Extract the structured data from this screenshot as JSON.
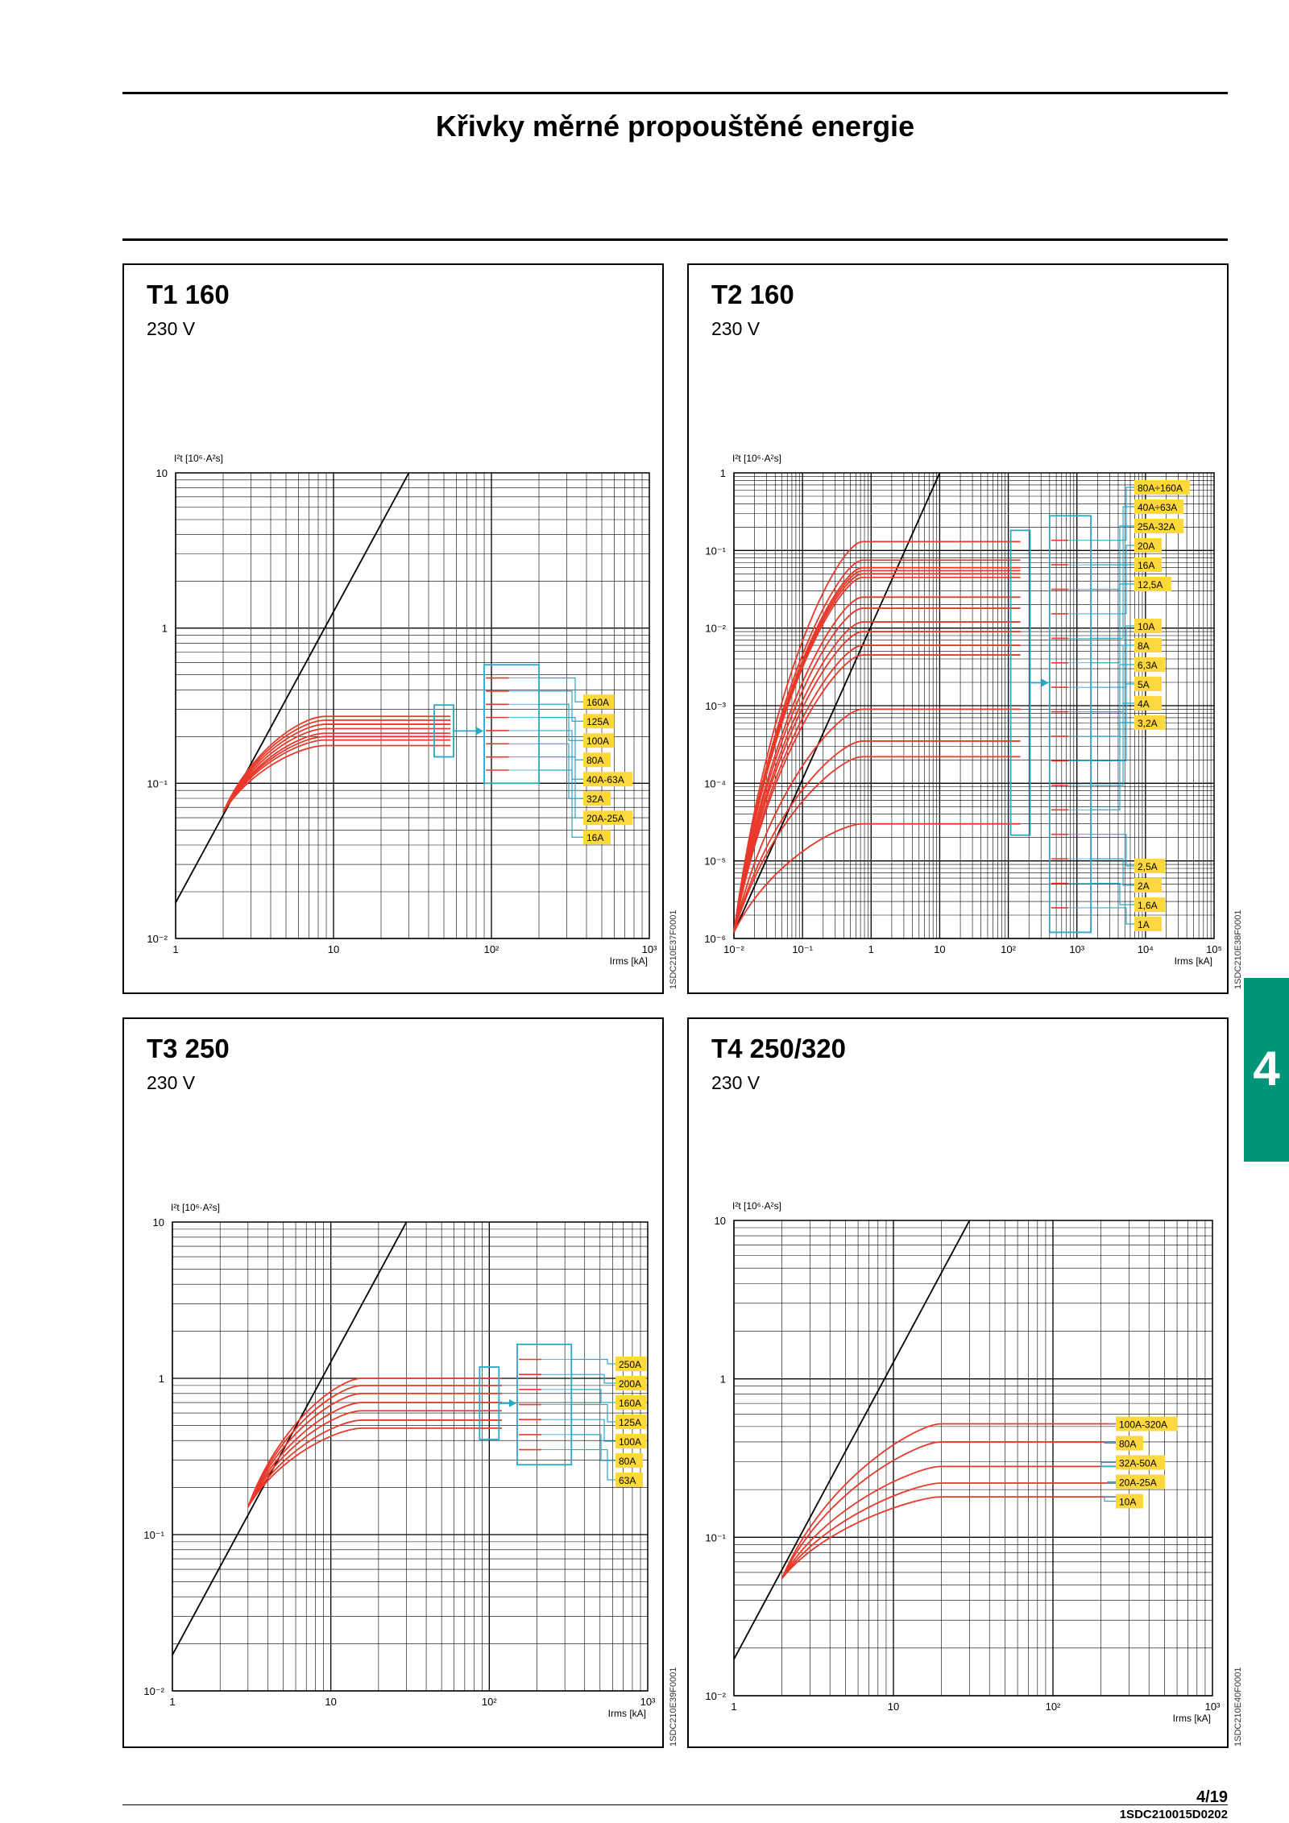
{
  "header": {
    "title": "Křivky měrné propouštěné energie"
  },
  "tab": {
    "number": "4"
  },
  "footer": {
    "page": "4/19",
    "doc_code": "1SDC210015D0202"
  },
  "colors": {
    "curve": "#e8392b",
    "bracket": "#2aa6c9",
    "label_bg": "#ffd83d",
    "tab": "#009579",
    "grid": "#000000"
  },
  "chart_data": [
    {
      "id": "t1",
      "type": "line",
      "title": "T1 160",
      "subtitle": "230 V",
      "ylabel": "I²t [10⁶·A²s]",
      "xlabel": "Irms [kA]",
      "x_scale": "log",
      "y_scale": "log",
      "xlim": [
        1,
        1000
      ],
      "ylim": [
        0.01,
        10
      ],
      "x_ticks": [
        "1",
        "10",
        "10²",
        "10³"
      ],
      "y_ticks": [
        "10",
        "1",
        "10⁻¹",
        "10⁻²"
      ],
      "code": "1SDC210E37F0001",
      "bracket_x_kA": 50,
      "box_x_kA": [
        90,
        200
      ],
      "box_y": [
        0.1,
        0.58
      ],
      "limit_line": [
        [
          1,
          0.017
        ],
        [
          30,
          10
        ]
      ],
      "series": [
        {
          "name": "160A",
          "plateau": 0.27,
          "start": [
            2,
            0.065
          ],
          "end_x": 55
        },
        {
          "name": "125A",
          "plateau": 0.255,
          "start": [
            2,
            0.065
          ],
          "end_x": 55
        },
        {
          "name": "100A",
          "plateau": 0.24,
          "start": [
            2,
            0.065
          ],
          "end_x": 55
        },
        {
          "name": "80A",
          "plateau": 0.225,
          "start": [
            2,
            0.065
          ],
          "end_x": 55
        },
        {
          "name": "40A-63A",
          "plateau": 0.21,
          "start": [
            2,
            0.065
          ],
          "end_x": 55
        },
        {
          "name": "32A",
          "plateau": 0.2,
          "start": [
            2,
            0.065
          ],
          "end_x": 55
        },
        {
          "name": "20A-25A",
          "plateau": 0.19,
          "start": [
            2,
            0.065
          ],
          "end_x": 55
        },
        {
          "name": "16A",
          "plateau": 0.175,
          "start": [
            2,
            0.065
          ],
          "end_x": 55
        }
      ]
    },
    {
      "id": "t2",
      "type": "line",
      "title": "T2 160",
      "subtitle": "230 V",
      "ylabel": "I²t [10⁶·A²s]",
      "xlabel": "Irms [kA]",
      "x_scale": "log",
      "y_scale": "log",
      "xlim": [
        0.01,
        100000
      ],
      "ylim": [
        1e-06,
        1
      ],
      "x_ticks": [
        "10⁻²",
        "10⁻¹",
        "1",
        "10",
        "10²",
        "10³",
        "10⁴",
        "10⁵"
      ],
      "y_ticks": [
        "1",
        "10⁻¹",
        "10⁻²",
        "10⁻³",
        "10⁻⁴",
        "10⁻⁵",
        "10⁻⁶"
      ],
      "code": "1SDC210E38F0001",
      "bracket_x_kA": 150,
      "box_x_kA": [
        400,
        1600
      ],
      "box_y": [
        1.2e-06,
        0.28
      ],
      "limit_line": [
        [
          0.01,
          1.2e-06
        ],
        [
          10,
          1
        ]
      ],
      "series": [
        {
          "name": "80A÷160A",
          "plateau": 0.13,
          "start": [
            0.01,
            1.2e-06
          ],
          "end_x": 150
        },
        {
          "name": "40A÷63A",
          "plateau": 0.075,
          "start": [
            0.01,
            1.2e-06
          ],
          "end_x": 150
        },
        {
          "name": "25A-32A",
          "plateau": 0.06,
          "start": [
            0.01,
            1.2e-06
          ],
          "end_x": 150
        },
        {
          "name": "20A",
          "plateau": 0.055,
          "start": [
            0.01,
            1.2e-06
          ],
          "end_x": 150
        },
        {
          "name": "16A",
          "plateau": 0.05,
          "start": [
            0.01,
            1.2e-06
          ],
          "end_x": 150
        },
        {
          "name": "12,5A",
          "plateau": 0.045,
          "start": [
            0.01,
            1.2e-06
          ],
          "end_x": 150
        },
        {
          "name": "10A",
          "plateau": 0.025,
          "start": [
            0.01,
            1.2e-06
          ],
          "end_x": 150
        },
        {
          "name": "8A",
          "plateau": 0.018,
          "start": [
            0.01,
            1.2e-06
          ],
          "end_x": 150
        },
        {
          "name": "6,3A",
          "plateau": 0.012,
          "start": [
            0.01,
            1.2e-06
          ],
          "end_x": 150
        },
        {
          "name": "5A",
          "plateau": 0.009,
          "start": [
            0.01,
            1.2e-06
          ],
          "end_x": 150
        },
        {
          "name": "4A",
          "plateau": 0.006,
          "start": [
            0.01,
            1.2e-06
          ],
          "end_x": 150
        },
        {
          "name": "3,2A",
          "plateau": 0.0045,
          "start": [
            0.01,
            1.2e-06
          ],
          "end_x": 150
        },
        {
          "name": "2,5A",
          "plateau": 0.0009,
          "start": [
            0.01,
            1.2e-06
          ],
          "end_x": 150
        },
        {
          "name": "2A",
          "plateau": 0.00035,
          "start": [
            0.01,
            1.2e-06
          ],
          "end_x": 150
        },
        {
          "name": "1,6A",
          "plateau": 0.00022,
          "start": [
            0.01,
            1.2e-06
          ],
          "end_x": 150
        },
        {
          "name": "1A",
          "plateau": 3e-05,
          "start": [
            0.01,
            1.2e-06
          ],
          "end_x": 150
        }
      ]
    },
    {
      "id": "t3",
      "type": "line",
      "title": "T3 250",
      "subtitle": "230 V",
      "ylabel": "I²t [10⁶·A²s]",
      "xlabel": "Irms [kA]",
      "x_scale": "log",
      "y_scale": "log",
      "xlim": [
        1,
        1000
      ],
      "ylim": [
        0.01,
        10
      ],
      "x_ticks": [
        "1",
        "10",
        "10²",
        "10³"
      ],
      "y_ticks": [
        "10",
        "1",
        "10⁻¹",
        "10⁻²"
      ],
      "code": "1SDC210E39F0001",
      "bracket_x_kA": 100,
      "box_x_kA": [
        150,
        330
      ],
      "box_y": [
        0.28,
        1.65
      ],
      "limit_line": [
        [
          1,
          0.017
        ],
        [
          30,
          10
        ]
      ],
      "series": [
        {
          "name": "250A",
          "plateau": 1.0,
          "start": [
            3,
            0.15
          ],
          "end_x": 120
        },
        {
          "name": "200A",
          "plateau": 0.9,
          "start": [
            3,
            0.15
          ],
          "end_x": 120
        },
        {
          "name": "160A",
          "plateau": 0.8,
          "start": [
            3,
            0.15
          ],
          "end_x": 120
        },
        {
          "name": "125A",
          "plateau": 0.7,
          "start": [
            3,
            0.15
          ],
          "end_x": 120
        },
        {
          "name": "100A",
          "plateau": 0.62,
          "start": [
            3,
            0.15
          ],
          "end_x": 120
        },
        {
          "name": "80A",
          "plateau": 0.54,
          "start": [
            3,
            0.15
          ],
          "end_x": 120
        },
        {
          "name": "63A",
          "plateau": 0.48,
          "start": [
            3,
            0.15
          ],
          "end_x": 120
        }
      ]
    },
    {
      "id": "t4",
      "type": "line",
      "title": "T4 250/320",
      "subtitle": "230 V",
      "ylabel": "I²t [10⁶·A²s]",
      "xlabel": "Irms [kA]",
      "x_scale": "log",
      "y_scale": "log",
      "xlim": [
        1,
        1000
      ],
      "ylim": [
        0.01,
        10
      ],
      "x_ticks": [
        "1",
        "10",
        "10²",
        "10³"
      ],
      "y_ticks": [
        "10",
        "1",
        "10⁻¹",
        "10⁻²"
      ],
      "code": "1SDC210E40F0001",
      "limit_line": [
        [
          1,
          0.017
        ],
        [
          30,
          10
        ]
      ],
      "series": [
        {
          "name": "100A-320A",
          "plateau": 0.52,
          "start": [
            2,
            0.055
          ],
          "end_x": 330
        },
        {
          "name": "80A",
          "plateau": 0.4,
          "start": [
            2,
            0.055
          ],
          "end_x": 330
        },
        {
          "name": "32A-50A",
          "plateau": 0.28,
          "start": [
            2,
            0.055
          ],
          "end_x": 330
        },
        {
          "name": "20A-25A",
          "plateau": 0.22,
          "start": [
            2,
            0.055
          ],
          "end_x": 330
        },
        {
          "name": "10A",
          "plateau": 0.18,
          "start": [
            2,
            0.055
          ],
          "end_x": 330
        }
      ]
    }
  ]
}
